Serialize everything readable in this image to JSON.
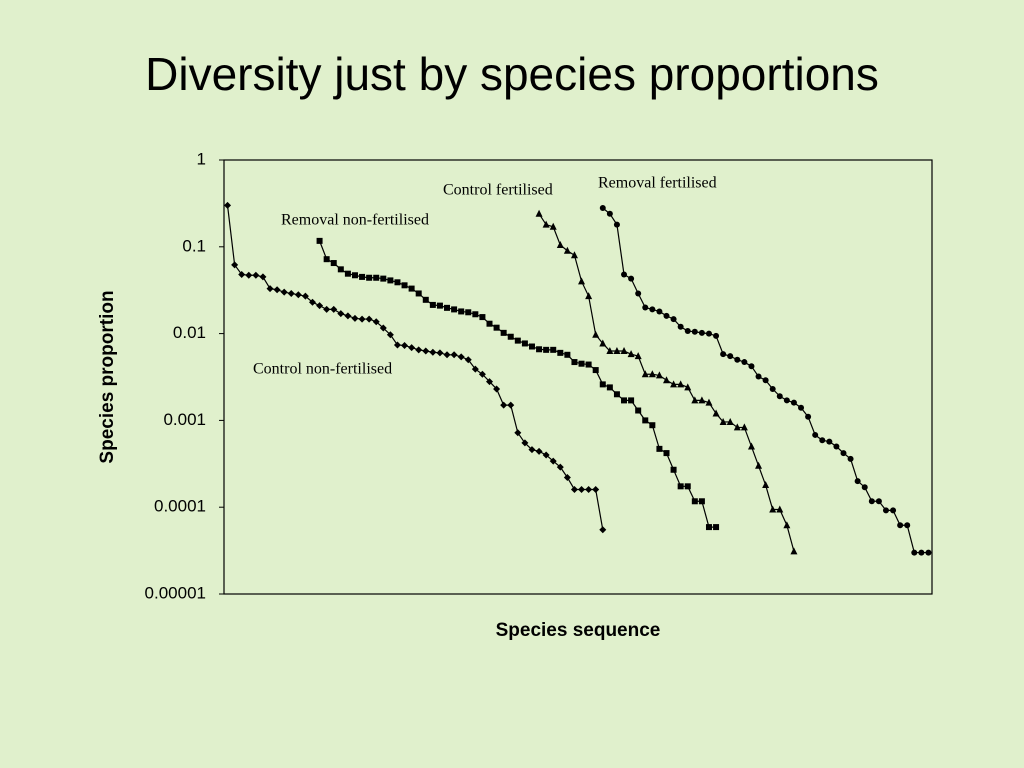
{
  "chart_data": {
    "type": "line",
    "title": "Diversity just by species proportions",
    "x_label": "Species sequence",
    "y_label": "Species proportion",
    "log_scale_y": true,
    "xlim": [
      0.5,
      100.5
    ],
    "ylim": [
      1e-05,
      1
    ],
    "yticks": [
      1,
      0.1,
      0.01,
      0.001,
      0.0001,
      1e-05
    ],
    "series": [
      {
        "name": "Control non-fertilised",
        "color": "#000000",
        "marker": "diamond",
        "x": [
          1,
          2,
          3,
          4,
          5,
          6,
          7,
          8,
          9,
          10,
          11,
          12,
          13,
          14,
          15,
          16,
          17,
          18,
          19,
          20,
          21,
          22,
          23,
          24,
          25,
          26,
          27,
          28,
          29,
          30,
          31,
          32,
          33,
          34,
          35,
          36,
          37,
          38,
          39,
          40,
          41,
          42,
          43,
          44,
          45,
          46,
          47,
          48,
          49,
          50,
          51,
          52,
          53,
          54
        ],
        "values": [
          0.3,
          0.062,
          0.048,
          0.047,
          0.047,
          0.045,
          0.033,
          0.032,
          0.03,
          0.029,
          0.028,
          0.027,
          0.023,
          0.021,
          0.019,
          0.019,
          0.017,
          0.016,
          0.015,
          0.0147,
          0.0147,
          0.0137,
          0.0116,
          0.0097,
          0.0074,
          0.0073,
          0.0069,
          0.0065,
          0.0063,
          0.0061,
          0.006,
          0.0057,
          0.0057,
          0.0054,
          0.005,
          0.0039,
          0.0034,
          0.0028,
          0.0023,
          0.0015,
          0.0015,
          0.00072,
          0.00055,
          0.00046,
          0.00044,
          0.0004,
          0.00034,
          0.00029,
          0.00022,
          0.00016,
          0.00016,
          0.00016,
          0.00016,
          5.5e-05
        ]
      },
      {
        "name": "Removal non-fertilised",
        "color": "#000000",
        "marker": "square",
        "x": [
          14,
          15,
          16,
          17,
          18,
          19,
          20,
          21,
          22,
          23,
          24,
          25,
          26,
          27,
          28,
          29,
          30,
          31,
          32,
          33,
          34,
          35,
          36,
          37,
          38,
          39,
          40,
          41,
          42,
          43,
          44,
          45,
          46,
          47,
          48,
          49,
          50,
          51,
          52,
          53,
          54,
          55,
          56,
          57,
          58,
          59,
          60,
          61,
          62,
          63,
          64,
          65,
          66,
          67,
          68,
          69,
          70
        ],
        "values": [
          0.117,
          0.072,
          0.065,
          0.055,
          0.049,
          0.047,
          0.045,
          0.044,
          0.044,
          0.043,
          0.041,
          0.039,
          0.036,
          0.033,
          0.029,
          0.0245,
          0.0214,
          0.021,
          0.0198,
          0.019,
          0.018,
          0.0176,
          0.0167,
          0.0155,
          0.013,
          0.0117,
          0.0102,
          0.0092,
          0.0083,
          0.0077,
          0.0071,
          0.0066,
          0.0065,
          0.0065,
          0.006,
          0.0057,
          0.0047,
          0.0045,
          0.0044,
          0.0038,
          0.0026,
          0.0024,
          0.002,
          0.0017,
          0.0017,
          0.0013,
          0.001,
          0.00088,
          0.00047,
          0.00042,
          0.00027,
          0.000174,
          0.000174,
          0.000117,
          0.000117,
          5.9e-05,
          5.9e-05
        ]
      },
      {
        "name": "Control fertilised",
        "color": "#000000",
        "marker": "triangle",
        "x": [
          45,
          46,
          47,
          48,
          49,
          50,
          51,
          52,
          53,
          54,
          55,
          56,
          57,
          58,
          59,
          60,
          61,
          62,
          63,
          64,
          65,
          66,
          67,
          68,
          69,
          70,
          71,
          72,
          73,
          74,
          75,
          76,
          77,
          78,
          79,
          80,
          81
        ],
        "values": [
          0.24,
          0.18,
          0.17,
          0.105,
          0.09,
          0.08,
          0.04,
          0.027,
          0.0097,
          0.0077,
          0.0063,
          0.0063,
          0.0063,
          0.0058,
          0.0055,
          0.0034,
          0.0034,
          0.0033,
          0.0029,
          0.0026,
          0.0026,
          0.0024,
          0.0017,
          0.0017,
          0.0016,
          0.0012,
          0.00096,
          0.00096,
          0.00083,
          0.00083,
          0.0005,
          0.0003,
          0.00018,
          9.4e-05,
          9.4e-05,
          6.2e-05,
          3.1e-05
        ]
      },
      {
        "name": "Removal fertilised",
        "color": "#000000",
        "marker": "circle",
        "x": [
          54,
          55,
          56,
          57,
          58,
          59,
          60,
          61,
          62,
          63,
          64,
          65,
          66,
          67,
          68,
          69,
          70,
          71,
          72,
          73,
          74,
          75,
          76,
          77,
          78,
          79,
          80,
          81,
          82,
          83,
          84,
          85,
          86,
          87,
          88,
          89,
          90,
          91,
          92,
          93,
          94,
          95,
          96,
          97,
          98,
          99,
          100
        ],
        "values": [
          0.28,
          0.24,
          0.18,
          0.048,
          0.043,
          0.029,
          0.02,
          0.019,
          0.018,
          0.016,
          0.0147,
          0.012,
          0.0107,
          0.0105,
          0.0102,
          0.01,
          0.0094,
          0.0058,
          0.0055,
          0.005,
          0.0047,
          0.0042,
          0.0032,
          0.0029,
          0.0023,
          0.0019,
          0.0017,
          0.0016,
          0.0014,
          0.0011,
          0.00068,
          0.00059,
          0.00057,
          0.0005,
          0.00042,
          0.00036,
          0.0002,
          0.00017,
          0.000117,
          0.000117,
          9.2e-05,
          9.2e-05,
          6.2e-05,
          6.2e-05,
          3e-05,
          3e-05,
          3e-05
        ]
      }
    ]
  }
}
